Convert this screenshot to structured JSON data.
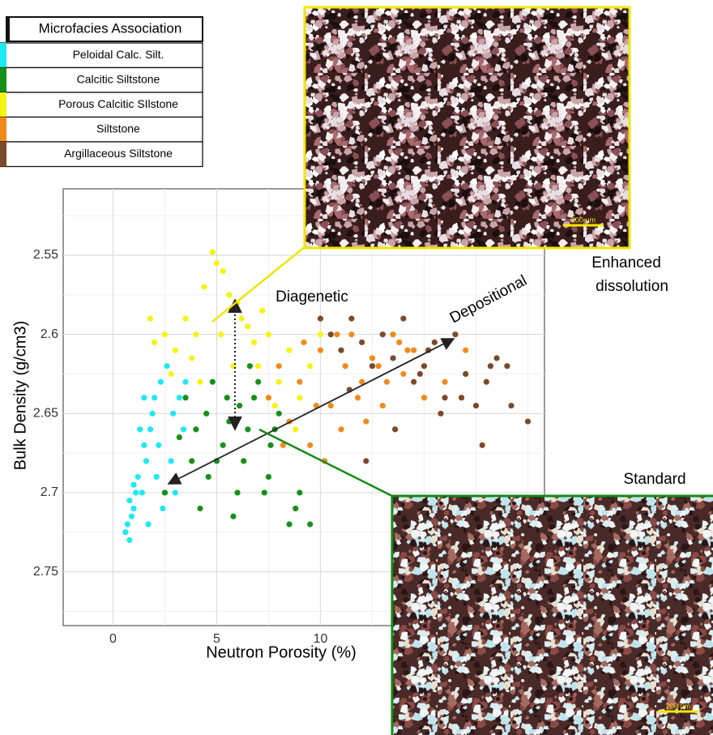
{
  "chart_data": {
    "type": "scatter",
    "x_label": "Neutron Porosity (%)",
    "y_label": "Bulk Density (g/cm3)",
    "xlim": [
      -2.4,
      20.8
    ],
    "ylim": [
      2.508,
      2.784
    ],
    "y_reversed": true,
    "xticks": [
      0,
      5,
      10
    ],
    "yticks": [
      2.55,
      2.6,
      2.65,
      2.7,
      2.75
    ],
    "grid": true,
    "legend_title": "Microfacies Association",
    "series": [
      {
        "name": "Peloidal Calc. Silt.",
        "color": "#1ee8f2",
        "x": [
          0.6,
          0.8,
          1.0,
          1.2,
          1.5,
          1.1,
          0.9,
          1.8,
          2.0,
          2.3,
          1.6,
          2.6,
          2.9,
          3.2,
          1.4,
          2.1,
          1.7,
          0.7,
          2.5,
          3.5,
          1.3,
          2.8,
          1.9,
          3.0,
          2.2,
          1.0,
          3.4,
          2.4,
          1.5,
          0.8
        ],
        "values": [
          2.725,
          2.73,
          2.71,
          2.69,
          2.67,
          2.7,
          2.715,
          2.66,
          2.64,
          2.63,
          2.68,
          2.62,
          2.65,
          2.64,
          2.7,
          2.69,
          2.72,
          2.72,
          2.7,
          2.63,
          2.66,
          2.68,
          2.65,
          2.7,
          2.67,
          2.695,
          2.66,
          2.71,
          2.64,
          2.705
        ]
      },
      {
        "name": "Calcitic Siltstone",
        "color": "#16901a",
        "x": [
          3.5,
          4.0,
          4.5,
          5.0,
          5.5,
          6.0,
          6.5,
          7.0,
          7.5,
          8.0,
          8.5,
          9.0,
          4.2,
          4.8,
          5.3,
          5.8,
          6.3,
          6.8,
          7.3,
          7.8,
          3.8,
          4.6,
          5.6,
          6.6,
          7.6,
          8.8,
          9.5,
          2.5,
          3.2,
          6.1
        ],
        "values": [
          2.64,
          2.66,
          2.65,
          2.68,
          2.64,
          2.7,
          2.66,
          2.63,
          2.69,
          2.65,
          2.72,
          2.7,
          2.71,
          2.63,
          2.67,
          2.715,
          2.68,
          2.64,
          2.7,
          2.66,
          2.68,
          2.69,
          2.655,
          2.62,
          2.67,
          2.71,
          2.72,
          2.7,
          2.665,
          2.645
        ]
      },
      {
        "name": "Porous Calcitic SIlstone",
        "color": "#f6f215",
        "x": [
          4.8,
          5.0,
          5.3,
          5.6,
          4.4,
          4.0,
          3.5,
          3.0,
          2.5,
          2.0,
          1.8,
          6.0,
          6.5,
          7.0,
          7.5,
          8.0,
          8.5,
          9.0,
          9.5,
          10.0,
          4.2,
          5.8,
          6.8,
          7.8,
          8.8,
          3.8,
          5.2,
          6.2,
          2.8,
          7.2
        ],
        "values": [
          2.548,
          2.555,
          2.56,
          2.575,
          2.57,
          2.6,
          2.59,
          2.61,
          2.6,
          2.605,
          2.59,
          2.58,
          2.595,
          2.62,
          2.6,
          2.63,
          2.61,
          2.64,
          2.62,
          2.6,
          2.63,
          2.62,
          2.605,
          2.645,
          2.66,
          2.615,
          2.6,
          2.59,
          2.625,
          2.585
        ]
      },
      {
        "name": "Siltstone",
        "color": "#f08a1c",
        "x": [
          7.5,
          8.0,
          8.5,
          9.0,
          9.5,
          10.0,
          10.5,
          11.0,
          11.5,
          12.0,
          12.5,
          13.0,
          13.5,
          14.0,
          14.5,
          15.0,
          8.2,
          9.2,
          10.2,
          11.2,
          12.2,
          13.2,
          14.2,
          9.8,
          10.8,
          11.8,
          12.8,
          13.8,
          16.0,
          17.0
        ],
        "values": [
          2.64,
          2.62,
          2.655,
          2.63,
          2.67,
          2.61,
          2.645,
          2.66,
          2.6,
          2.63,
          2.615,
          2.645,
          2.6,
          2.625,
          2.61,
          2.64,
          2.67,
          2.605,
          2.68,
          2.62,
          2.655,
          2.63,
          2.61,
          2.645,
          2.6,
          2.64,
          2.62,
          2.605,
          2.63,
          2.61
        ]
      },
      {
        "name": "Argillaceous Siltstone",
        "color": "#7a4a2c",
        "x": [
          10.0,
          10.5,
          11.0,
          11.5,
          12.0,
          12.5,
          13.0,
          13.5,
          14.0,
          14.5,
          15.0,
          15.5,
          16.0,
          16.5,
          17.0,
          17.5,
          18.0,
          18.5,
          19.0,
          20.0,
          12.2,
          13.6,
          14.8,
          15.8,
          16.8,
          17.8,
          18.2,
          11.4,
          19.2,
          15.2
        ],
        "values": [
          2.59,
          2.6,
          2.61,
          2.59,
          2.605,
          2.62,
          2.6,
          2.615,
          2.59,
          2.63,
          2.62,
          2.605,
          2.64,
          2.6,
          2.625,
          2.645,
          2.63,
          2.615,
          2.62,
          2.655,
          2.68,
          2.66,
          2.625,
          2.65,
          2.64,
          2.67,
          2.62,
          2.635,
          2.645,
          2.61
        ]
      }
    ],
    "annotations": {
      "diagenetic": "Diagenetic",
      "depositional": "Depositional",
      "enhanced": [
        "Enhanced",
        "dissolution"
      ],
      "standard": "Standard"
    },
    "photos": {
      "top_scale": "200 µm",
      "bottom_scale": "200 µm"
    }
  }
}
